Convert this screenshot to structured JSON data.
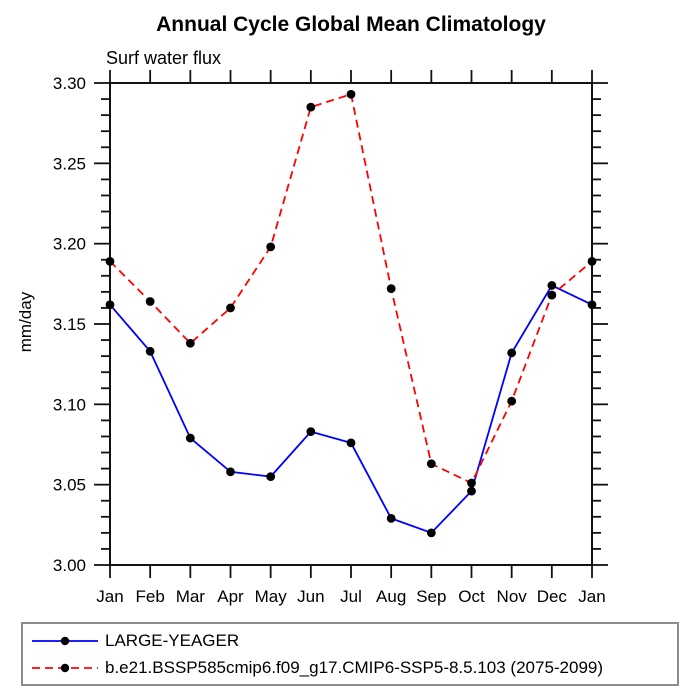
{
  "chart_data": {
    "type": "line",
    "title": "Annual Cycle Global Mean Climatology",
    "subtitle": "Surf water flux",
    "ylabel": "mm/day",
    "xlabel": "",
    "categories": [
      "Jan",
      "Feb",
      "Mar",
      "Apr",
      "May",
      "Jun",
      "Jul",
      "Aug",
      "Sep",
      "Oct",
      "Nov",
      "Dec",
      "Jan"
    ],
    "ylim": [
      3.0,
      3.3
    ],
    "ytick_major": 0.05,
    "ytick_minor": 0.01,
    "grid": false,
    "legend_position": "bottom-left-box",
    "marker": {
      "shape": "circle",
      "color": "#000000"
    },
    "axis_color": "#111111",
    "series": [
      {
        "name": "LARGE-YEAGER",
        "color": "#0000ff",
        "line_style": "solid",
        "values": [
          3.162,
          3.133,
          3.079,
          3.058,
          3.055,
          3.083,
          3.076,
          3.029,
          3.02,
          3.046,
          3.132,
          3.174,
          3.162
        ]
      },
      {
        "name": "b.e21.BSSP585cmip6.f09_g17.CMIP6-SSP5-8.5.103 (2075-2099)",
        "color": "#ff0000",
        "line_style": "dashed",
        "values": [
          3.189,
          3.164,
          3.138,
          3.16,
          3.198,
          3.285,
          3.293,
          3.172,
          3.063,
          3.051,
          3.102,
          3.168,
          3.189
        ]
      }
    ]
  }
}
